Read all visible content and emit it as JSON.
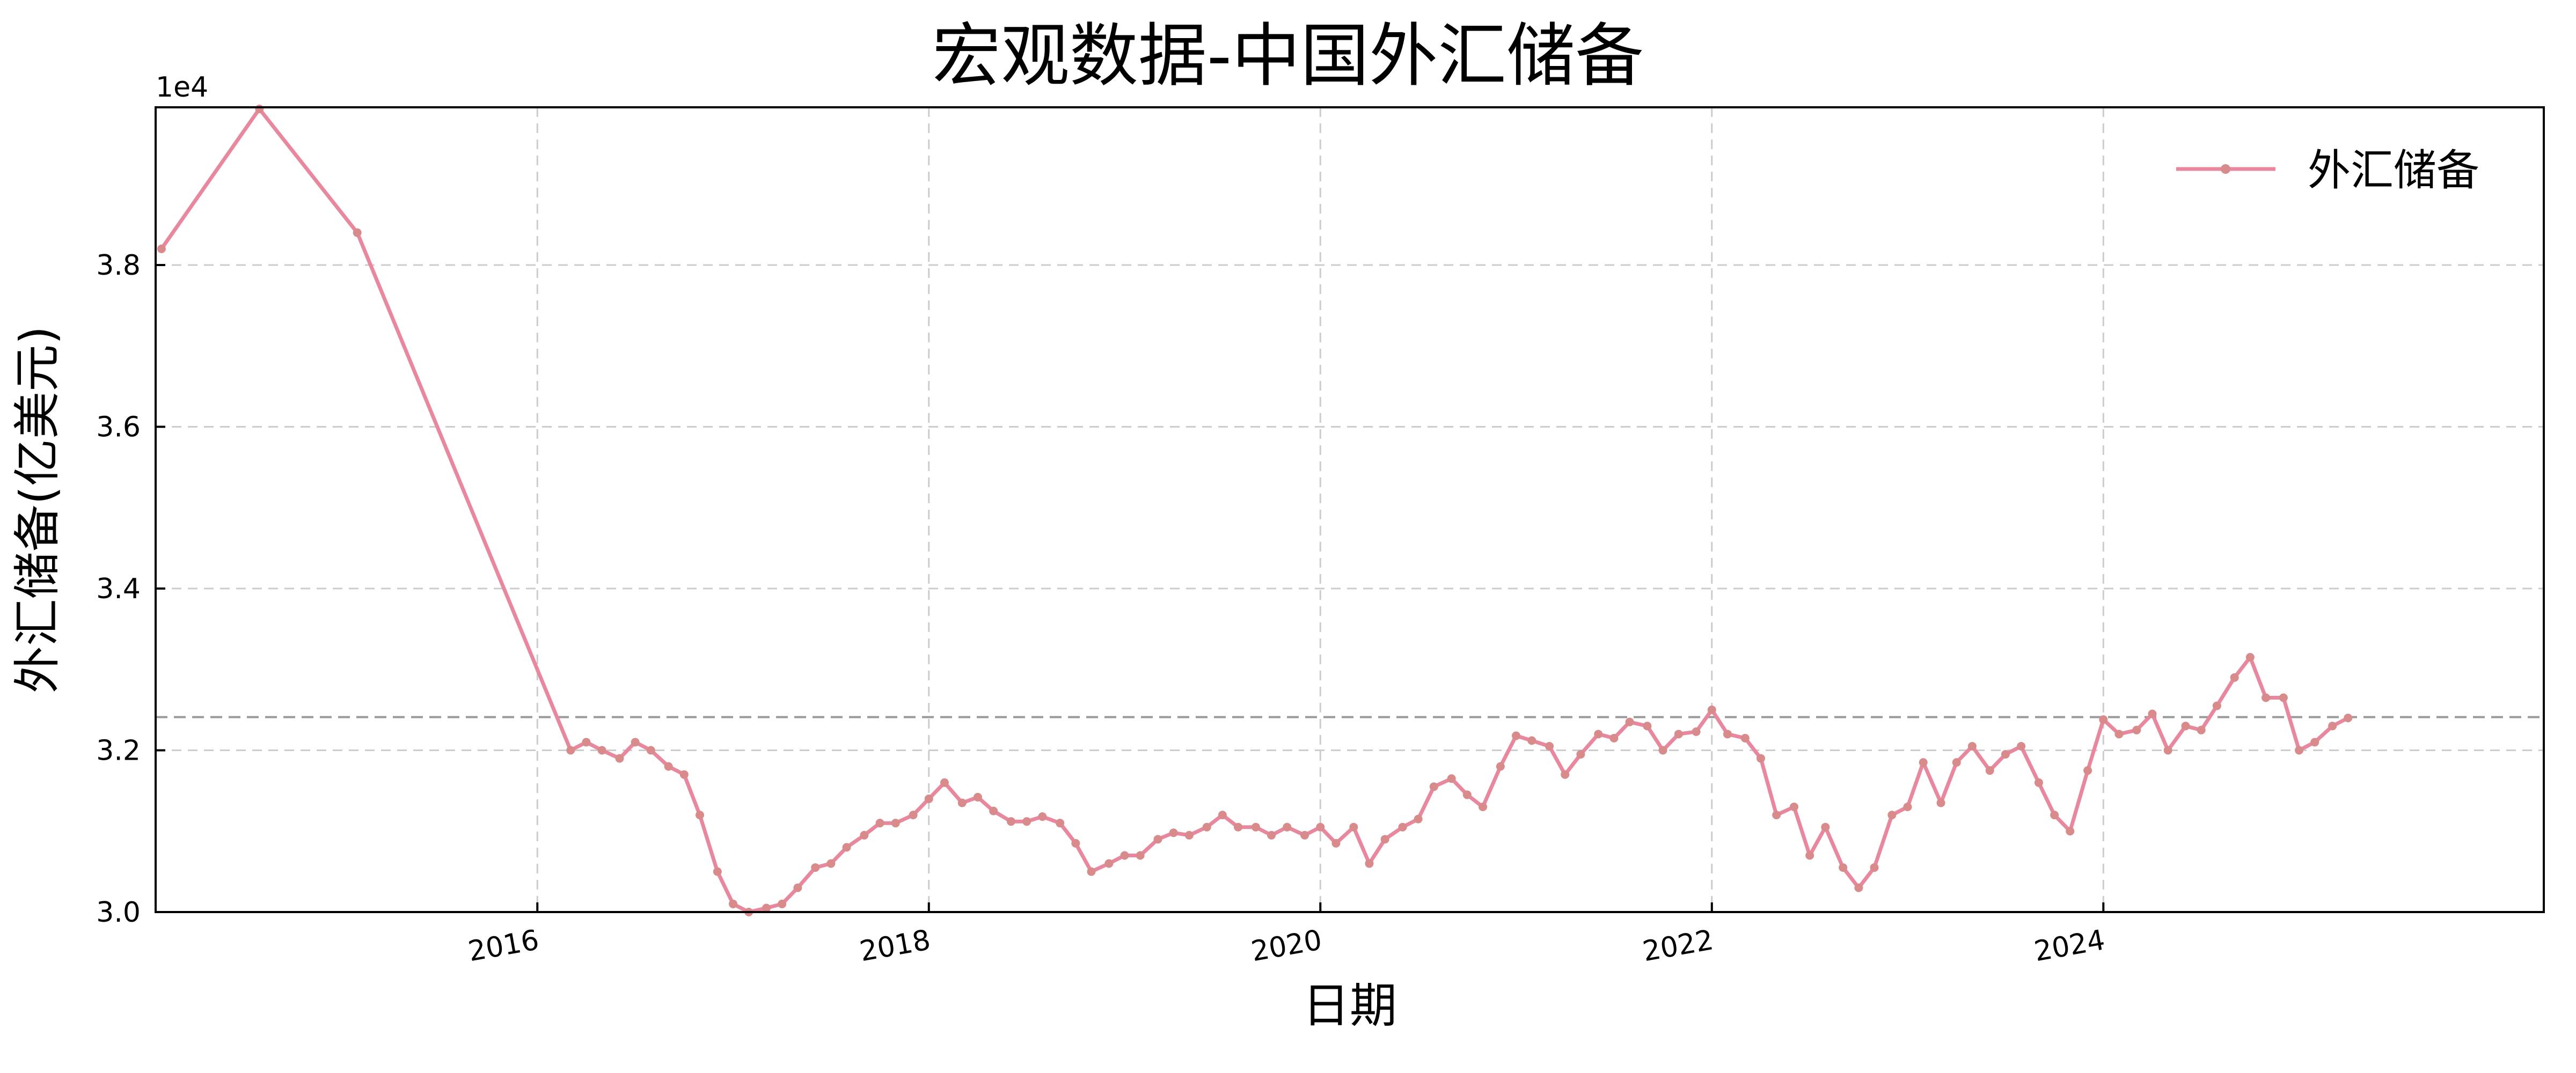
{
  "chart_data": {
    "type": "line",
    "title": "宏观数据-中国外汇储备",
    "xlabel": "日期",
    "ylabel": "外汇储备(亿美元)",
    "y_offset_label": "1e4",
    "y_tick_labels": [
      "3.0",
      "3.2",
      "3.4",
      "3.6",
      "3.8"
    ],
    "y_ticks": [
      30000,
      32000,
      34000,
      36000,
      38000
    ],
    "x_tick_labels": [
      "2016",
      "2018",
      "2020",
      "2022",
      "2024"
    ],
    "x_ticks": [
      2016.0,
      2018.0,
      2020.0,
      2022.0,
      2024.0
    ],
    "xlim": [
      2014.05,
      2026.25
    ],
    "ylim": [
      30000,
      39950
    ],
    "grid": true,
    "legend_position": "top-right",
    "reference_line": 32410,
    "colors": {
      "line": "#e8879e",
      "marker": "#d98a8a",
      "reference": "#9a9a9a",
      "grid": "#cccccc"
    },
    "series": [
      {
        "name": "外汇储备",
        "x": [
          2014.08,
          2014.58,
          2015.08,
          2016.17,
          2016.25,
          2016.33,
          2016.42,
          2016.5,
          2016.58,
          2016.67,
          2016.75,
          2016.83,
          2016.92,
          2017.0,
          2017.08,
          2017.17,
          2017.25,
          2017.33,
          2017.42,
          2017.5,
          2017.58,
          2017.67,
          2017.75,
          2017.83,
          2017.92,
          2018.0,
          2018.08,
          2018.17,
          2018.25,
          2018.33,
          2018.42,
          2018.5,
          2018.58,
          2018.67,
          2018.75,
          2018.83,
          2018.92,
          2019.0,
          2019.08,
          2019.17,
          2019.25,
          2019.33,
          2019.42,
          2019.5,
          2019.58,
          2019.67,
          2019.75,
          2019.83,
          2019.92,
          2020.0,
          2020.08,
          2020.17,
          2020.25,
          2020.33,
          2020.42,
          2020.5,
          2020.58,
          2020.67,
          2020.75,
          2020.83,
          2020.92,
          2021.0,
          2021.08,
          2021.17,
          2021.25,
          2021.33,
          2021.42,
          2021.5,
          2021.58,
          2021.67,
          2021.75,
          2021.83,
          2021.92,
          2022.0,
          2022.08,
          2022.17,
          2022.25,
          2022.33,
          2022.42,
          2022.5,
          2022.58,
          2022.67,
          2022.75,
          2022.83,
          2022.92,
          2023.0,
          2023.08,
          2023.17,
          2023.25,
          2023.33,
          2023.42,
          2023.5,
          2023.58,
          2023.67,
          2023.75,
          2023.83,
          2023.92,
          2024.0,
          2024.08,
          2024.17,
          2024.25,
          2024.33,
          2024.42,
          2024.5,
          2024.58,
          2024.67,
          2024.75,
          2024.83,
          2024.92,
          2025.0,
          2025.08,
          2025.17,
          2025.25
        ],
        "values": [
          38200,
          39930,
          38400,
          32000,
          32100,
          32000,
          31900,
          32100,
          32000,
          31800,
          31700,
          31200,
          30500,
          30100,
          30000,
          30050,
          30100,
          30300,
          30550,
          30600,
          30800,
          30950,
          31100,
          31100,
          31200,
          31400,
          31600,
          31350,
          31420,
          31250,
          31120,
          31120,
          31180,
          31100,
          30850,
          30500,
          30600,
          30700,
          30700,
          30900,
          30980,
          30950,
          31050,
          31200,
          31050,
          31050,
          30950,
          31050,
          30950,
          31050,
          30850,
          31050,
          30600,
          30900,
          31050,
          31150,
          31550,
          31650,
          31450,
          31300,
          31800,
          32180,
          32120,
          32050,
          31700,
          31950,
          32200,
          32150,
          32350,
          32300,
          32000,
          32200,
          32230,
          32500,
          32200,
          32150,
          31900,
          31200,
          31300,
          30700,
          31050,
          30550,
          30300,
          30550,
          31200,
          31300,
          31850,
          31350,
          31850,
          32050,
          31750,
          31950,
          32050,
          31600,
          31200,
          31000,
          31750,
          32380,
          32200,
          32250,
          32450,
          32000,
          32300,
          32250,
          32550,
          32900,
          33150,
          32650,
          32650,
          32000,
          32100,
          32300,
          32400
        ]
      }
    ]
  }
}
